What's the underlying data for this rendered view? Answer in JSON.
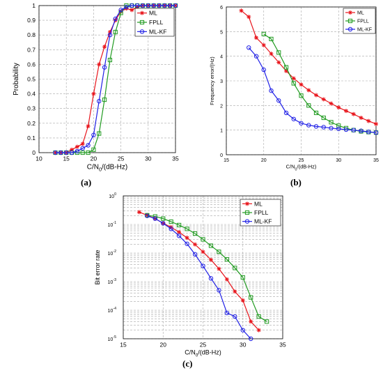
{
  "colors": {
    "ML": "#e8141b",
    "FPLL": "#1f9a1f",
    "ML-KF": "#1f1fe6",
    "grid": "#a8a8a8"
  },
  "panels": [
    {
      "label": "(a)"
    },
    {
      "label": "(b)"
    },
    {
      "label": "(c)"
    }
  ],
  "chart_data": [
    {
      "type": "line",
      "xlabel": "C/N0/(dB-Hz)",
      "ylabel": "Probability",
      "xlim": [
        10,
        35
      ],
      "ylim": [
        0,
        1
      ],
      "xticks": [
        10,
        15,
        20,
        25,
        30,
        35
      ],
      "yticks": [
        0,
        0.1,
        0.2,
        0.3,
        0.4,
        0.5,
        0.6,
        0.7,
        0.8,
        0.9,
        1
      ],
      "grid": true,
      "legend_position": "top-right",
      "series": [
        {
          "name": "ML",
          "marker": "star",
          "x": [
            13,
            14,
            15,
            16,
            17,
            18,
            19,
            20,
            21,
            22,
            23,
            24,
            25,
            26,
            27,
            28,
            29,
            30,
            31,
            32,
            33,
            34,
            35
          ],
          "y": [
            0,
            0,
            0,
            0.02,
            0.04,
            0.06,
            0.18,
            0.4,
            0.6,
            0.72,
            0.82,
            0.9,
            0.96,
            0.98,
            0.97,
            0.99,
            1,
            1,
            1,
            1,
            1,
            1,
            1
          ]
        },
        {
          "name": "FPLL",
          "marker": "square",
          "x": [
            13,
            14,
            15,
            16,
            17,
            18,
            19,
            20,
            21,
            22,
            23,
            24,
            25,
            26,
            27,
            28,
            29,
            30,
            31,
            32,
            33,
            34,
            35
          ],
          "y": [
            0,
            0,
            0,
            0,
            0,
            0,
            0,
            0.02,
            0.13,
            0.36,
            0.63,
            0.82,
            0.95,
            1,
            1,
            1,
            1,
            1,
            1,
            1,
            1,
            1,
            1
          ]
        },
        {
          "name": "ML-KF",
          "marker": "circle",
          "x": [
            13,
            14,
            15,
            16,
            17,
            18,
            19,
            20,
            21,
            22,
            23,
            24,
            25,
            26,
            27,
            28,
            29,
            30,
            31,
            32,
            33,
            34,
            35
          ],
          "y": [
            0,
            0,
            0,
            0,
            0.01,
            0.03,
            0.05,
            0.12,
            0.35,
            0.58,
            0.8,
            0.91,
            0.97,
            0.99,
            1,
            1,
            1,
            1,
            1,
            1,
            1,
            1,
            1
          ]
        }
      ]
    },
    {
      "type": "line",
      "xlabel": "C/N0/(dB-Hz)",
      "ylabel": "Frequency error/(Hz)",
      "xlim": [
        15,
        35
      ],
      "ylim": [
        0,
        6
      ],
      "xticks": [
        15,
        20,
        25,
        30,
        35
      ],
      "yticks": [
        0,
        1,
        2,
        3,
        4,
        5,
        6
      ],
      "grid": true,
      "legend_position": "top-right",
      "series": [
        {
          "name": "ML",
          "marker": "star",
          "x": [
            17,
            18,
            19,
            20,
            21,
            22,
            23,
            24,
            25,
            26,
            27,
            28,
            29,
            30,
            31,
            32,
            33,
            34,
            35
          ],
          "y": [
            5.85,
            5.6,
            4.75,
            4.45,
            4.1,
            3.75,
            3.4,
            3.1,
            2.85,
            2.62,
            2.42,
            2.25,
            2.08,
            1.92,
            1.78,
            1.65,
            1.5,
            1.37,
            1.25
          ]
        },
        {
          "name": "FPLL",
          "marker": "square",
          "x": [
            20,
            21,
            22,
            23,
            24,
            25,
            26,
            27,
            28,
            29,
            30,
            31,
            32,
            33,
            34,
            35
          ],
          "y": [
            4.9,
            4.7,
            4.15,
            3.55,
            2.9,
            2.4,
            2.0,
            1.7,
            1.5,
            1.32,
            1.18,
            1.08,
            1.0,
            0.95,
            0.92,
            0.9
          ]
        },
        {
          "name": "ML-KF",
          "marker": "circle",
          "x": [
            18,
            19,
            20,
            21,
            22,
            23,
            24,
            25,
            26,
            27,
            28,
            29,
            30,
            31,
            32,
            33,
            34,
            35
          ],
          "y": [
            4.35,
            4.0,
            3.45,
            2.6,
            2.2,
            1.7,
            1.45,
            1.28,
            1.2,
            1.15,
            1.12,
            1.08,
            1.05,
            1.02,
            1.0,
            0.97,
            0.93,
            0.9
          ]
        }
      ]
    },
    {
      "type": "line",
      "xlabel": "C/N0/(dB-Hz)",
      "ylabel": "Bit error rate",
      "xlim": [
        15,
        35
      ],
      "ylim": [
        1e-05,
        1
      ],
      "yscale": "log",
      "xticks": [
        15,
        20,
        25,
        30,
        35
      ],
      "ytick_exponents": [
        -5,
        -4,
        -3,
        -2,
        -1,
        0
      ],
      "grid": true,
      "legend_position": "top-right",
      "series": [
        {
          "name": "ML",
          "marker": "star",
          "x": [
            17,
            18,
            19,
            20,
            21,
            22,
            23,
            24,
            25,
            26,
            27,
            28,
            29,
            30,
            31,
            32
          ],
          "y": [
            0.27,
            0.21,
            0.16,
            0.11,
            0.08,
            0.054,
            0.034,
            0.02,
            0.011,
            0.0058,
            0.0028,
            0.0012,
            0.00045,
            0.00022,
            4e-05,
            2e-05
          ]
        },
        {
          "name": "FPLL",
          "marker": "square",
          "x": [
            18,
            19,
            20,
            21,
            22,
            23,
            24,
            25,
            26,
            27,
            28,
            29,
            30,
            31,
            32,
            33
          ],
          "y": [
            0.21,
            0.19,
            0.16,
            0.125,
            0.095,
            0.07,
            0.048,
            0.03,
            0.018,
            0.011,
            0.006,
            0.003,
            0.0014,
            0.00028,
            6e-05,
            4e-05
          ]
        },
        {
          "name": "ML-KF",
          "marker": "circle",
          "x": [
            18,
            19,
            20,
            21,
            22,
            23,
            24,
            25,
            26,
            27,
            28,
            29,
            30,
            31
          ],
          "y": [
            0.2,
            0.16,
            0.11,
            0.07,
            0.04,
            0.021,
            0.009,
            0.0035,
            0.0013,
            0.0005,
            8e-05,
            6e-05,
            2e-05,
            1e-05
          ]
        }
      ]
    }
  ]
}
